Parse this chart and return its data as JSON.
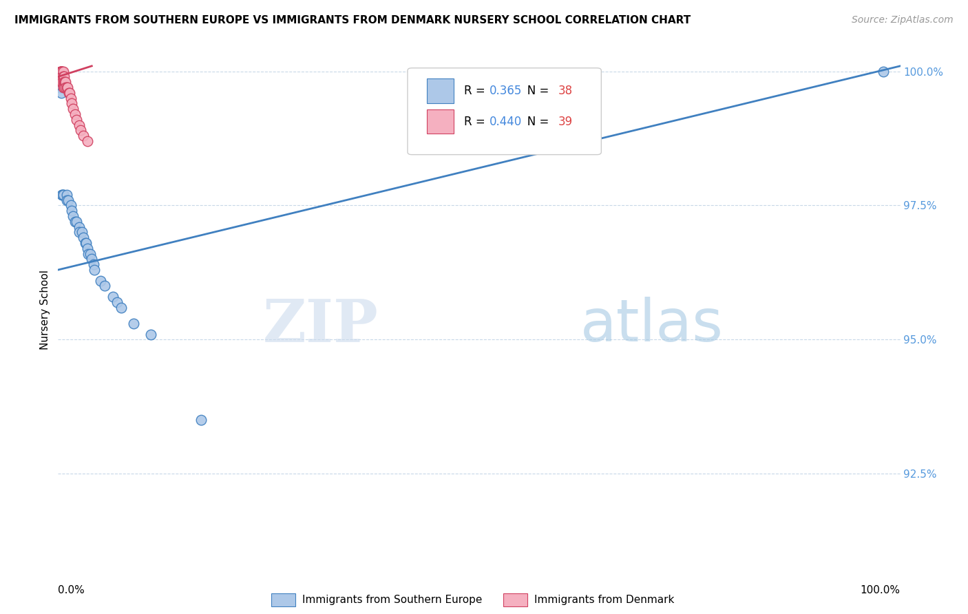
{
  "title": "IMMIGRANTS FROM SOUTHERN EUROPE VS IMMIGRANTS FROM DENMARK NURSERY SCHOOL CORRELATION CHART",
  "source": "Source: ZipAtlas.com",
  "ylabel": "Nursery School",
  "blue_label": "Immigrants from Southern Europe",
  "pink_label": "Immigrants from Denmark",
  "blue_R": "0.365",
  "blue_N": "38",
  "pink_R": "0.440",
  "pink_N": "39",
  "blue_color": "#adc8e8",
  "pink_color": "#f5b0c0",
  "blue_line_color": "#4080c0",
  "pink_line_color": "#d04060",
  "watermark_zip": "ZIP",
  "watermark_atlas": "atlas",
  "xlim": [
    0.0,
    1.0
  ],
  "ylim": [
    0.908,
    1.003
  ],
  "yticks": [
    1.0,
    0.975,
    0.95,
    0.925
  ],
  "ytick_labels": [
    "100.0%",
    "97.5%",
    "95.0%",
    "92.5%"
  ],
  "blue_points_x": [
    0.003,
    0.003,
    0.004,
    0.004,
    0.004,
    0.005,
    0.005,
    0.006,
    0.006,
    0.01,
    0.01,
    0.012,
    0.015,
    0.016,
    0.018,
    0.02,
    0.022,
    0.025,
    0.025,
    0.028,
    0.03,
    0.032,
    0.033,
    0.035,
    0.036,
    0.038,
    0.04,
    0.042,
    0.043,
    0.05,
    0.055,
    0.065,
    0.07,
    0.075,
    0.09,
    0.11,
    0.17,
    0.98
  ],
  "blue_points_y": [
    0.998,
    0.997,
    0.998,
    0.997,
    0.996,
    0.977,
    0.977,
    0.977,
    0.977,
    0.977,
    0.976,
    0.976,
    0.975,
    0.974,
    0.973,
    0.972,
    0.972,
    0.971,
    0.97,
    0.97,
    0.969,
    0.968,
    0.968,
    0.967,
    0.966,
    0.966,
    0.965,
    0.964,
    0.963,
    0.961,
    0.96,
    0.958,
    0.957,
    0.956,
    0.953,
    0.951,
    0.935,
    1.0
  ],
  "pink_points_x": [
    0.003,
    0.003,
    0.003,
    0.003,
    0.003,
    0.004,
    0.004,
    0.004,
    0.004,
    0.004,
    0.004,
    0.005,
    0.005,
    0.005,
    0.005,
    0.005,
    0.006,
    0.006,
    0.006,
    0.006,
    0.007,
    0.007,
    0.007,
    0.008,
    0.009,
    0.009,
    0.01,
    0.011,
    0.013,
    0.014,
    0.015,
    0.016,
    0.018,
    0.02,
    0.022,
    0.025,
    0.027,
    0.03,
    0.035
  ],
  "pink_points_y": [
    1.0,
    1.0,
    1.0,
    0.999,
    0.999,
    1.0,
    1.0,
    0.999,
    0.999,
    0.998,
    0.998,
    1.0,
    1.0,
    0.999,
    0.999,
    0.998,
    1.0,
    0.999,
    0.998,
    0.997,
    0.999,
    0.998,
    0.997,
    0.998,
    0.998,
    0.997,
    0.997,
    0.997,
    0.996,
    0.996,
    0.995,
    0.994,
    0.993,
    0.992,
    0.991,
    0.99,
    0.989,
    0.988,
    0.987
  ],
  "blue_trend_x": [
    0.0,
    1.0
  ],
  "blue_trend_y": [
    0.963,
    1.001
  ],
  "pink_trend_x": [
    0.0,
    0.04
  ],
  "pink_trend_y": [
    0.999,
    1.001
  ]
}
